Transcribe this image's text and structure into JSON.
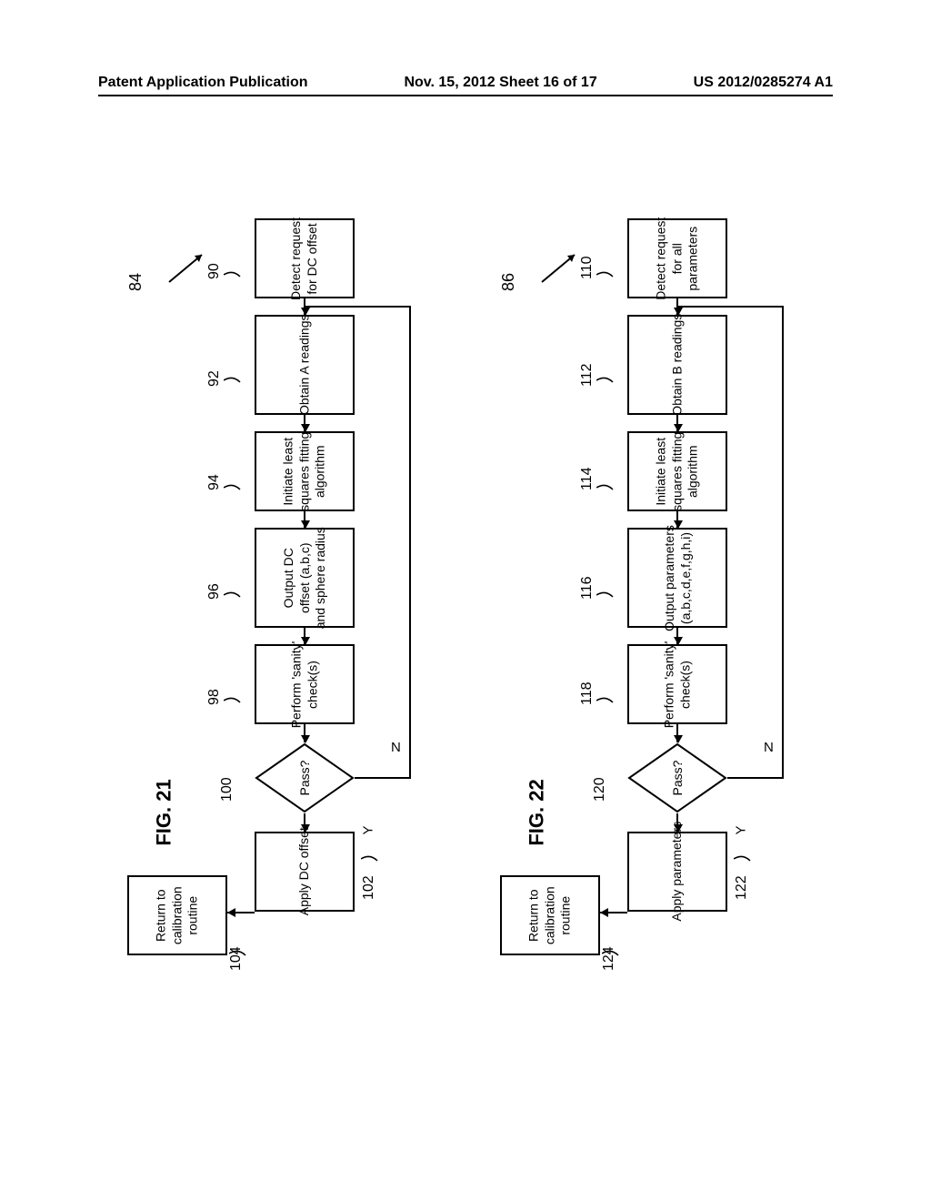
{
  "header": {
    "left": "Patent Application Publication",
    "center": "Nov. 15, 2012  Sheet 16 of 17",
    "right": "US 2012/0285274 A1"
  },
  "flows": {
    "left": {
      "ref": "84",
      "fig": "FIG. 21",
      "steps": {
        "s1": {
          "label": "90",
          "text": "Detect request\nfor DC offset"
        },
        "s2": {
          "label": "92",
          "text": "Obtain A readings"
        },
        "s3": {
          "label": "94",
          "text": "Initiate least\nsquares fitting\nalgorithm"
        },
        "s4": {
          "label": "96",
          "text": "Output DC\noffset (a,b,c)\nand sphere radius"
        },
        "s5": {
          "label": "98",
          "text": "Perform 'sanity'\ncheck(s)"
        },
        "d": {
          "label": "100",
          "text": "Pass?"
        },
        "s7": {
          "label": "102",
          "text": "Apply DC offset"
        },
        "s8": {
          "label": "104",
          "text": "Return to\ncalibration\nroutine"
        }
      },
      "y": "Y",
      "n": "N"
    },
    "right": {
      "ref": "86",
      "fig": "FIG. 22",
      "steps": {
        "s1": {
          "label": "110",
          "text": "Detect request\nfor all\nparameters"
        },
        "s2": {
          "label": "112",
          "text": "Obtain B readings"
        },
        "s3": {
          "label": "114",
          "text": "Initiate least\nsquares fitting\nalgorithm"
        },
        "s4": {
          "label": "116",
          "text": "Output parameters\n(a,b,c,d,e,f,g,h,i)"
        },
        "s5": {
          "label": "118",
          "text": "Perform 'sanity'\ncheck(s)"
        },
        "d": {
          "label": "120",
          "text": "Pass?"
        },
        "s7": {
          "label": "122",
          "text": "Apply parameters"
        },
        "s8": {
          "label": "124",
          "text": "Return to\ncalibration\nroutine"
        }
      },
      "y": "Y",
      "n": "N"
    }
  },
  "colors": {
    "line": "#000000",
    "bg": "#ffffff"
  }
}
